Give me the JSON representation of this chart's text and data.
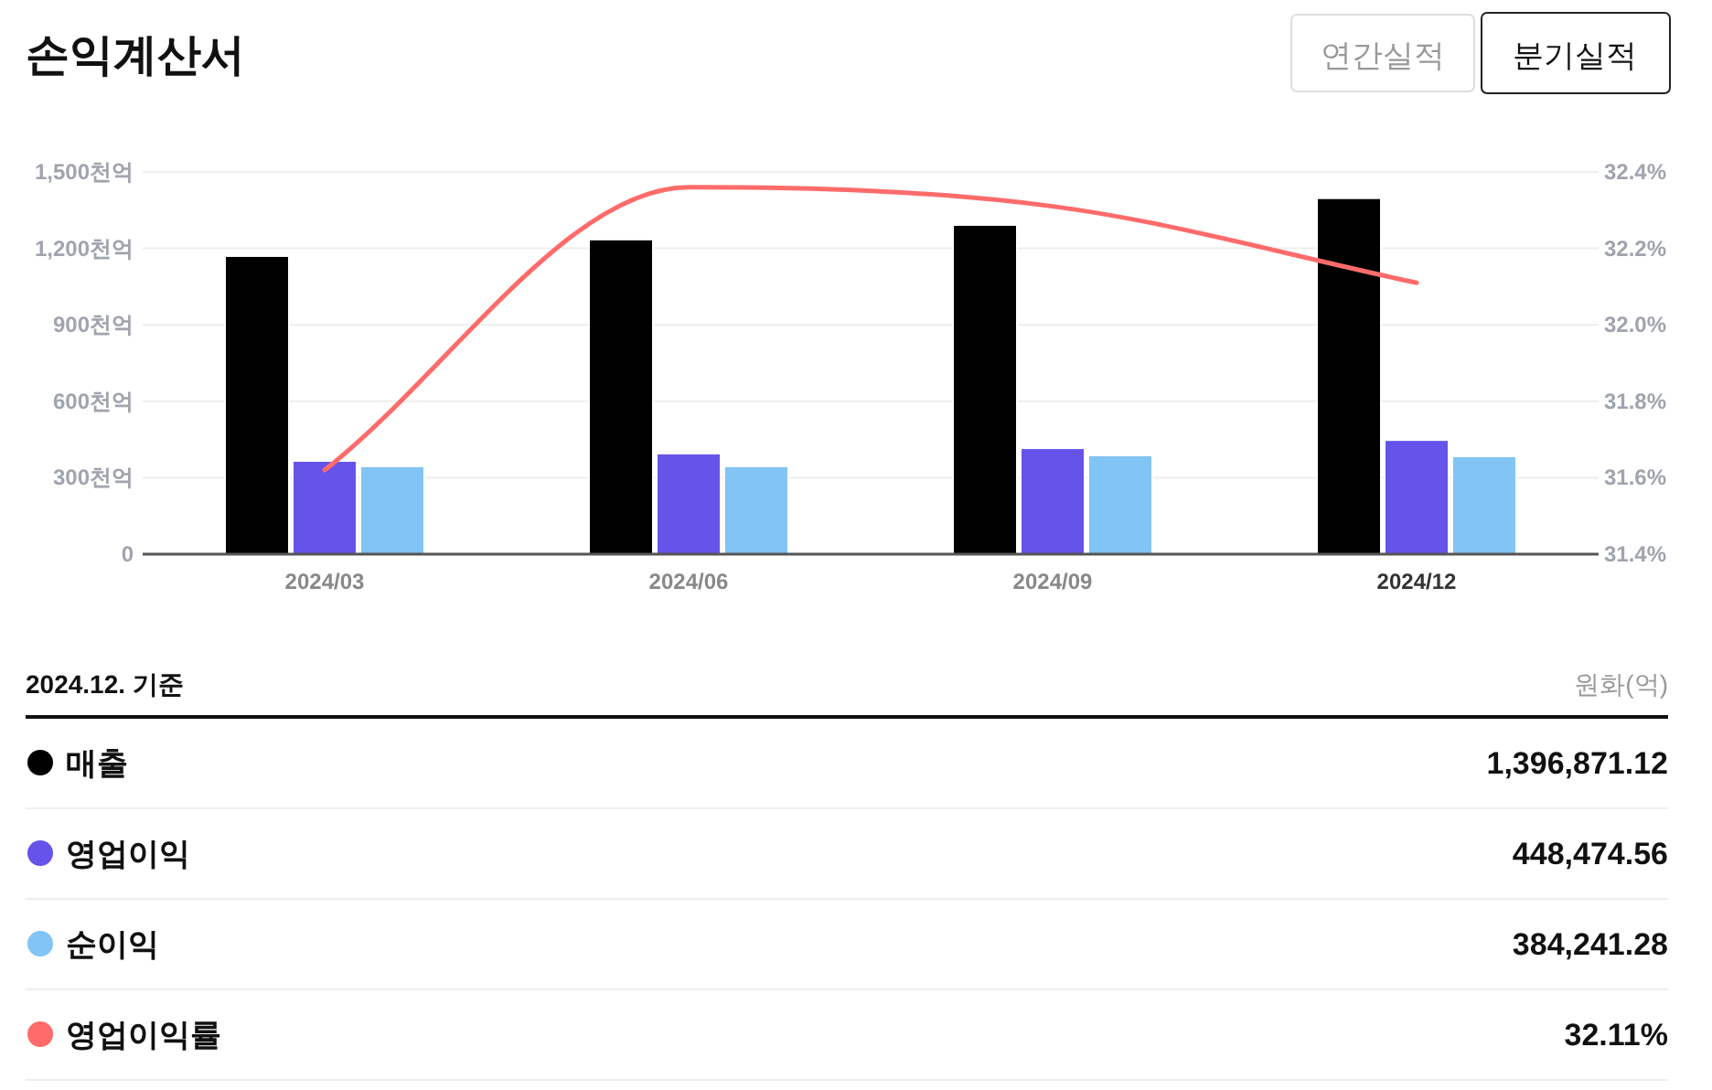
{
  "chart_data": {
    "type": "bar",
    "title": "손익계산서",
    "annotations": [
      "연간실적",
      "분기실적",
      "2024.12. 기준",
      "원화(억)",
      "1,396,871.12",
      "448,474.56",
      "384,241.28",
      "32.11%"
    ],
    "categories": [
      "2024/03",
      "2024/06",
      "2024/09",
      "2024/12"
    ],
    "series": [
      {
        "name": "매출",
        "color": "#000000",
        "values": [
          1170,
          1235,
          1292,
          1397
        ]
      },
      {
        "name": "영업이익",
        "color": "#6553ea",
        "values": [
          366,
          395,
          416,
          448
        ]
      },
      {
        "name": "순이익",
        "color": "#82c4f5",
        "values": [
          345,
          345,
          388,
          384
        ]
      },
      {
        "name": "영업이익률",
        "type": "line",
        "axis": "y2",
        "color": "#ff6b6b",
        "values": [
          31.62,
          32.36,
          32.31,
          32.11
        ]
      }
    ],
    "ylim": [
      0,
      1500
    ],
    "yticks": [
      0,
      {
        "value": 300,
        "label": "300천억"
      },
      {
        "value": 600,
        "label": "600천억"
      },
      {
        "value": 900,
        "label": "900천억"
      },
      {
        "value": 1200,
        "label": "1,200천억"
      },
      {
        "value": 1500,
        "label": "1,500천억"
      }
    ],
    "y2lim": [
      31.4,
      32.4
    ],
    "y2ticks": [
      {
        "value": 31.4,
        "label": "31.4%"
      },
      {
        "value": 31.6,
        "label": "31.6%"
      },
      {
        "value": 31.8,
        "label": "31.8%"
      },
      {
        "value": 32.0,
        "label": "32.0%"
      },
      {
        "value": 32.2,
        "label": "32.2%"
      },
      {
        "value": 32.4,
        "label": "32.4%"
      }
    ],
    "grid": "y",
    "legend": "bottom"
  }
}
